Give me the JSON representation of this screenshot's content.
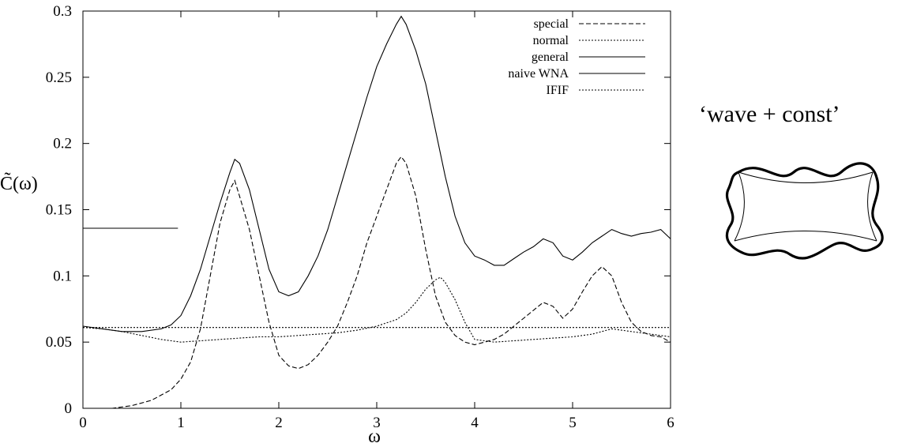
{
  "chart_data": {
    "type": "line",
    "xlabel": "ω",
    "ylabel": "C̃(ω)",
    "xlim": [
      0,
      6
    ],
    "ylim": [
      0,
      0.3
    ],
    "x_ticks": [
      "0",
      "1",
      "2",
      "3",
      "4",
      "5",
      "6"
    ],
    "y_ticks": [
      "0",
      "0.05",
      "0.1",
      "0.15",
      "0.2",
      "0.25",
      "0.3"
    ],
    "grid": false,
    "legend_position": "top-right",
    "series": [
      {
        "name": "special",
        "style": "dashed",
        "x": [
          0,
          0.3,
          0.5,
          0.7,
          0.9,
          1.0,
          1.1,
          1.2,
          1.3,
          1.4,
          1.5,
          1.55,
          1.6,
          1.7,
          1.8,
          1.9,
          2.0,
          2.1,
          2.2,
          2.3,
          2.4,
          2.5,
          2.6,
          2.7,
          2.8,
          2.9,
          3.0,
          3.1,
          3.2,
          3.25,
          3.3,
          3.4,
          3.5,
          3.6,
          3.7,
          3.8,
          3.9,
          4.0,
          4.1,
          4.2,
          4.3,
          4.4,
          4.5,
          4.6,
          4.7,
          4.8,
          4.9,
          5.0,
          5.1,
          5.2,
          5.3,
          5.4,
          5.5,
          5.6,
          5.7,
          5.8,
          5.9,
          6.0
        ],
        "y": [
          0.0,
          0.0,
          0.002,
          0.006,
          0.014,
          0.022,
          0.035,
          0.06,
          0.1,
          0.14,
          0.165,
          0.172,
          0.16,
          0.135,
          0.1,
          0.065,
          0.04,
          0.032,
          0.03,
          0.033,
          0.04,
          0.05,
          0.062,
          0.08,
          0.1,
          0.125,
          0.145,
          0.165,
          0.185,
          0.19,
          0.185,
          0.16,
          0.12,
          0.085,
          0.065,
          0.055,
          0.05,
          0.048,
          0.05,
          0.052,
          0.056,
          0.062,
          0.068,
          0.074,
          0.08,
          0.077,
          0.068,
          0.075,
          0.088,
          0.1,
          0.107,
          0.1,
          0.08,
          0.065,
          0.058,
          0.055,
          0.054,
          0.05
        ]
      },
      {
        "name": "normal",
        "style": "dotted",
        "x": [
          0,
          0.2,
          0.4,
          0.6,
          0.8,
          1.0,
          1.2,
          1.4,
          1.6,
          1.8,
          2.0,
          2.2,
          2.4,
          2.6,
          2.8,
          3.0,
          3.2,
          3.3,
          3.4,
          3.5,
          3.6,
          3.65,
          3.7,
          3.8,
          3.9,
          4.0,
          4.2,
          4.4,
          4.6,
          4.8,
          5.0,
          5.2,
          5.4,
          5.6,
          5.8,
          6.0
        ],
        "y": [
          0.061,
          0.06,
          0.058,
          0.055,
          0.052,
          0.05,
          0.051,
          0.052,
          0.053,
          0.054,
          0.054,
          0.055,
          0.056,
          0.057,
          0.059,
          0.062,
          0.067,
          0.072,
          0.08,
          0.09,
          0.097,
          0.099,
          0.095,
          0.082,
          0.065,
          0.052,
          0.05,
          0.051,
          0.052,
          0.053,
          0.054,
          0.056,
          0.06,
          0.058,
          0.056,
          0.054
        ]
      },
      {
        "name": "general",
        "style": "solid",
        "x": [
          0,
          0.2,
          0.4,
          0.6,
          0.8,
          0.9,
          1.0,
          1.1,
          1.2,
          1.3,
          1.4,
          1.5,
          1.55,
          1.6,
          1.7,
          1.8,
          1.9,
          2.0,
          2.1,
          2.2,
          2.3,
          2.4,
          2.5,
          2.6,
          2.7,
          2.8,
          2.9,
          3.0,
          3.1,
          3.2,
          3.25,
          3.3,
          3.4,
          3.5,
          3.6,
          3.7,
          3.8,
          3.9,
          4.0,
          4.1,
          4.2,
          4.3,
          4.4,
          4.5,
          4.6,
          4.7,
          4.8,
          4.9,
          5.0,
          5.1,
          5.2,
          5.3,
          5.4,
          5.5,
          5.6,
          5.7,
          5.8,
          5.9,
          6.0
        ],
        "y": [
          0.062,
          0.06,
          0.058,
          0.058,
          0.06,
          0.063,
          0.07,
          0.085,
          0.105,
          0.13,
          0.155,
          0.178,
          0.188,
          0.185,
          0.165,
          0.135,
          0.105,
          0.088,
          0.085,
          0.088,
          0.1,
          0.115,
          0.135,
          0.16,
          0.185,
          0.21,
          0.235,
          0.258,
          0.275,
          0.29,
          0.296,
          0.29,
          0.27,
          0.245,
          0.21,
          0.175,
          0.145,
          0.125,
          0.115,
          0.112,
          0.108,
          0.108,
          0.113,
          0.118,
          0.122,
          0.128,
          0.125,
          0.115,
          0.112,
          0.118,
          0.125,
          0.13,
          0.135,
          0.132,
          0.13,
          0.132,
          0.133,
          0.135,
          0.128
        ]
      },
      {
        "name": "naive WNA",
        "style": "solid",
        "x": [
          0,
          0.97
        ],
        "y": [
          0.136,
          0.136
        ]
      },
      {
        "name": "IFIF",
        "style": "dotted",
        "x": [
          0,
          6
        ],
        "y": [
          0.061,
          0.061
        ]
      }
    ]
  },
  "annotation": {
    "caption": "‘wave + const’",
    "icon": "wavy-billiard-shape-icon"
  }
}
